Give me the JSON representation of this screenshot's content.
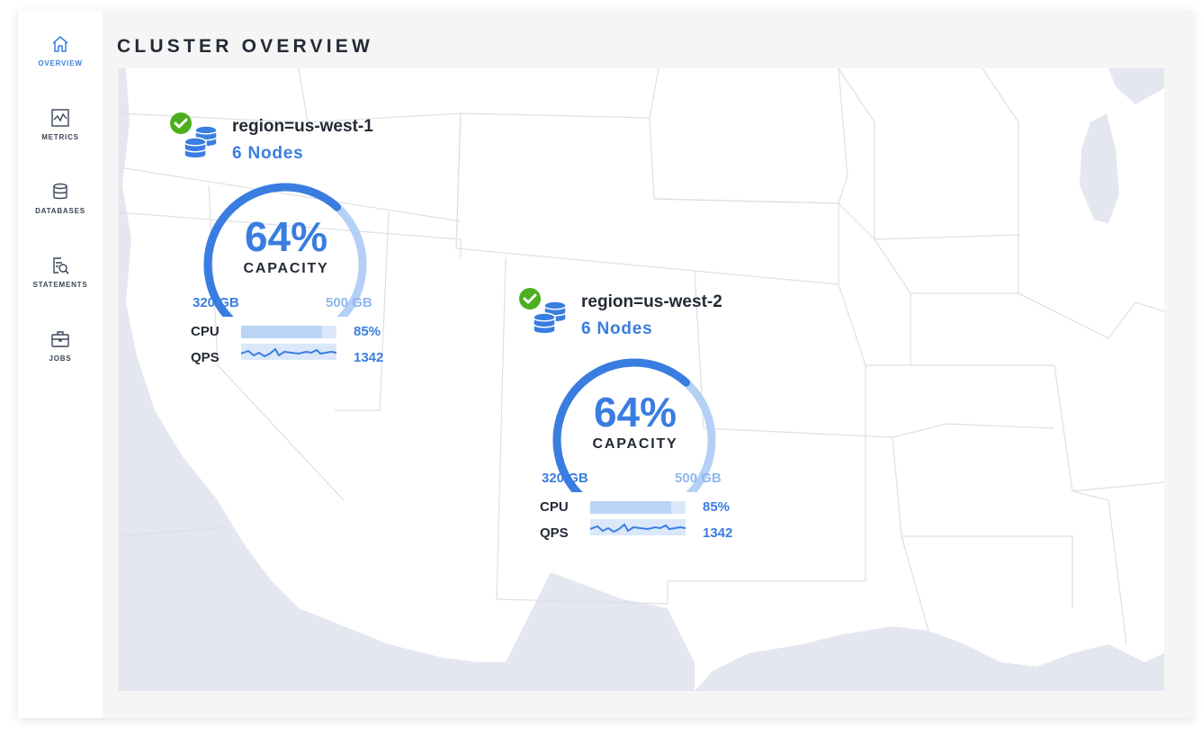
{
  "page": {
    "title": "CLUSTER OVERVIEW"
  },
  "sidebar": {
    "items": [
      {
        "label": "OVERVIEW",
        "icon": "home-icon",
        "active": true
      },
      {
        "label": "METRICS",
        "icon": "line-chart-icon",
        "active": false
      },
      {
        "label": "DATABASES",
        "icon": "database-icon",
        "active": false
      },
      {
        "label": "STATEMENTS",
        "icon": "search-statements-icon",
        "active": false
      },
      {
        "label": "JOBS",
        "icon": "briefcase-icon",
        "active": false
      }
    ]
  },
  "colors": {
    "accent": "#3a7de0",
    "accent_light": "#b5d0f5",
    "status_ok": "#4caf1e",
    "map_land": "#ffffff",
    "map_water": "#e4e7ef",
    "map_border": "#dddfe5"
  },
  "regions": [
    {
      "name": "region=us-west-1",
      "nodes": "6 Nodes",
      "status_icon": "check-circle-icon",
      "capacity_percent": "64%",
      "capacity_label": "CAPACITY",
      "capacity_fraction": 0.64,
      "used": "320 GB",
      "total": "500 GB",
      "cpu_label": "CPU",
      "cpu_value": "85%",
      "cpu_fraction": 0.85,
      "qps_label": "QPS",
      "qps_value": "1342"
    },
    {
      "name": "region=us-west-2",
      "nodes": "6 Nodes",
      "status_icon": "check-circle-icon",
      "capacity_percent": "64%",
      "capacity_label": "CAPACITY",
      "capacity_fraction": 0.64,
      "used": "320 GB",
      "total": "500 GB",
      "cpu_label": "CPU",
      "cpu_value": "85%",
      "cpu_fraction": 0.85,
      "qps_label": "QPS",
      "qps_value": "1342"
    }
  ]
}
